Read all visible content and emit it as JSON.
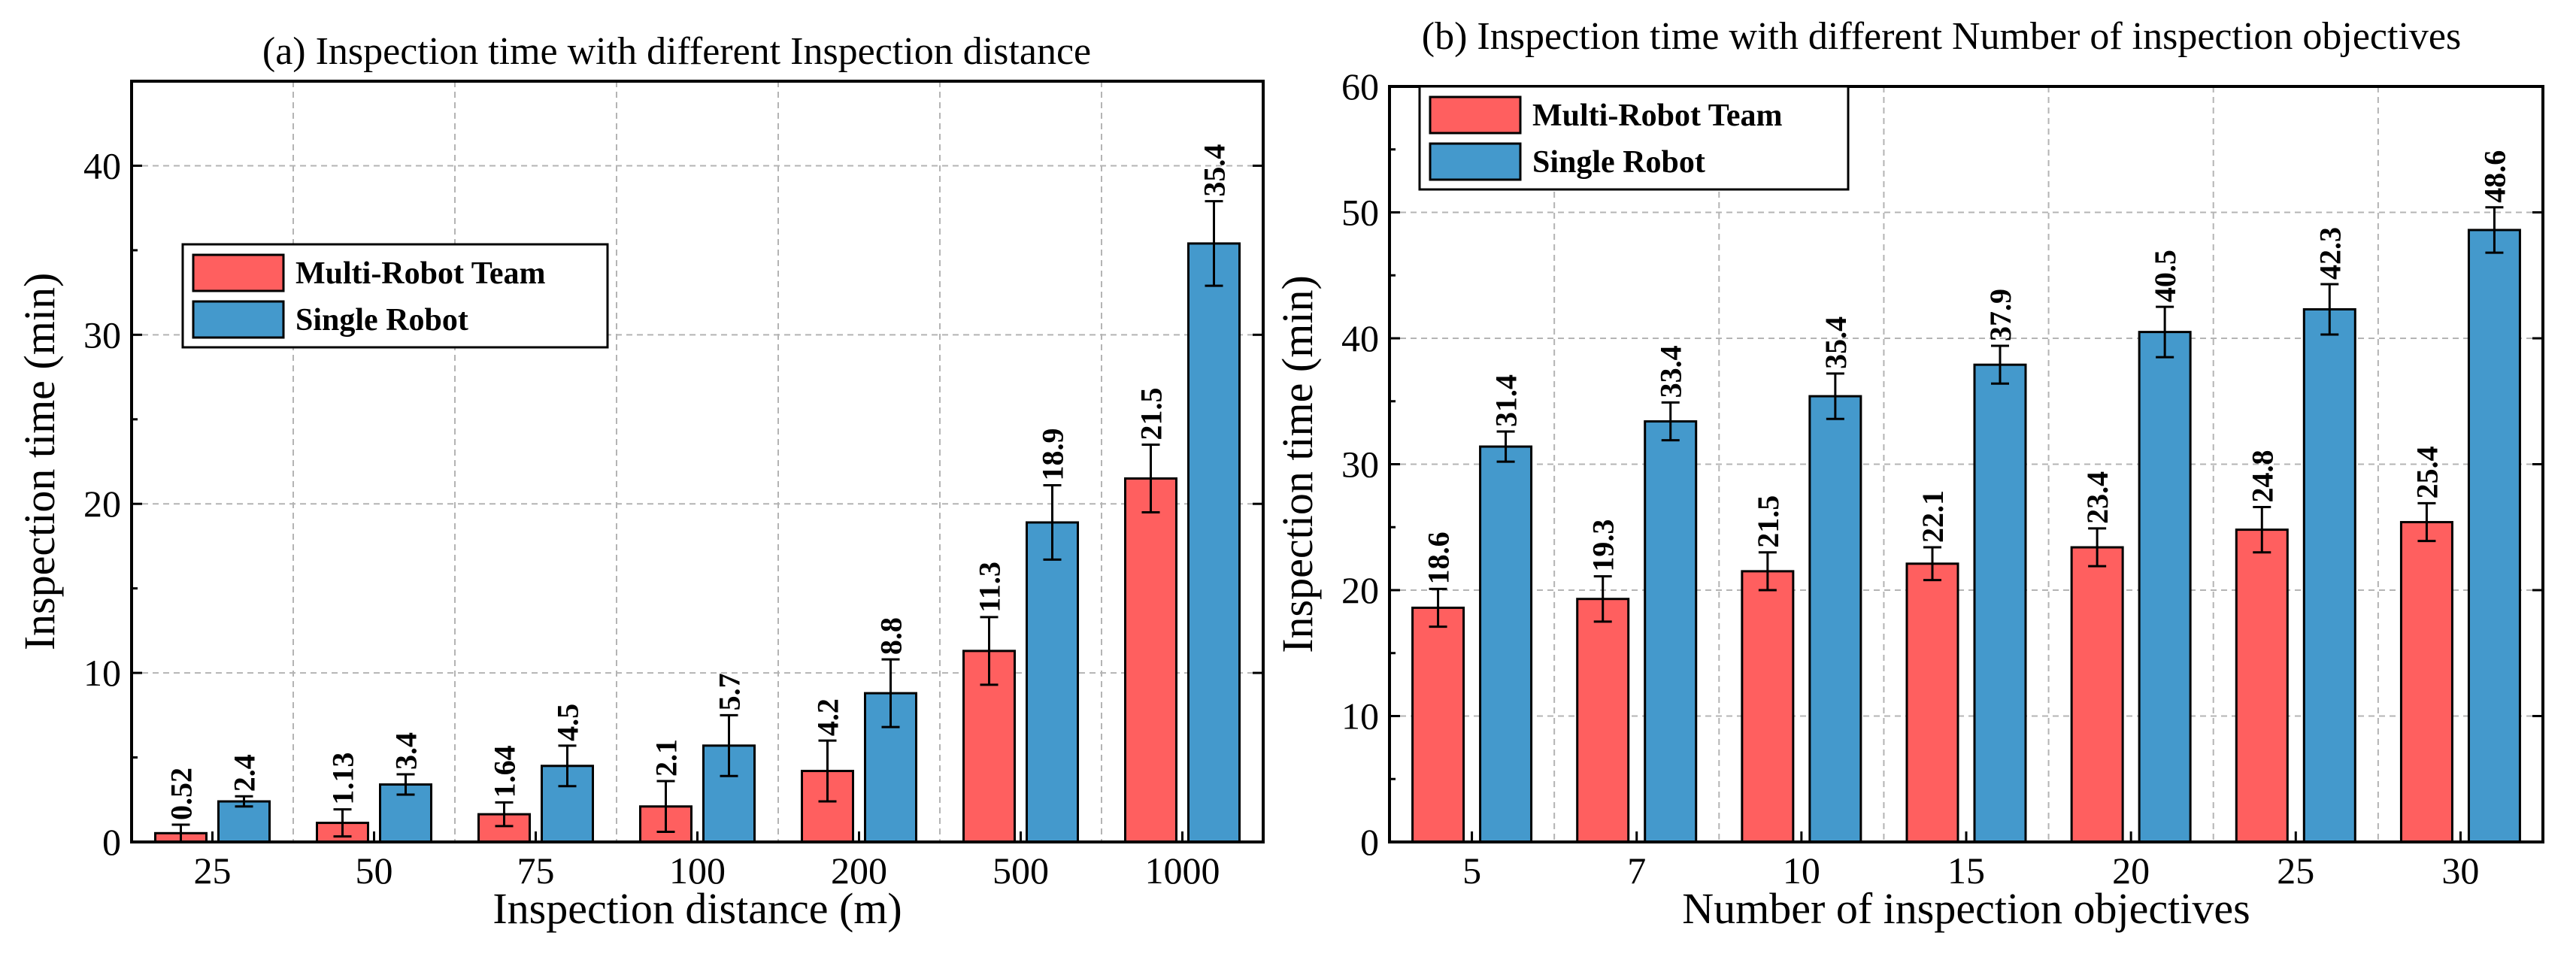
{
  "chart_data": [
    {
      "type": "bar",
      "title": "(a) Inspection time with different Inspection distance",
      "xlabel": "Inspection distance (m)",
      "ylabel": "Inspection time (min)",
      "categories": [
        "25",
        "50",
        "75",
        "100",
        "200",
        "500",
        "1000"
      ],
      "ylim": [
        0,
        45
      ],
      "yticks": [
        0,
        10,
        20,
        30,
        40
      ],
      "grid": true,
      "legend_position": "upper-left",
      "series": [
        {
          "name": "Multi-Robot Team",
          "color": "#FF5F5F",
          "values": [
            0.52,
            1.13,
            1.64,
            2.1,
            4.2,
            11.3,
            21.5
          ],
          "labels": [
            "0.52",
            "1.13",
            "1.64",
            "2.1",
            "4.2",
            "11.3",
            "21.5"
          ],
          "errors": [
            0.5,
            0.8,
            0.7,
            1.5,
            1.8,
            2.0,
            2.0
          ]
        },
        {
          "name": "Single Robot",
          "color": "#4499CC",
          "values": [
            2.4,
            3.4,
            4.5,
            5.7,
            8.8,
            18.9,
            35.4
          ],
          "labels": [
            "2.4",
            "3.4",
            "4.5",
            "5.7",
            "8.8",
            "18.9",
            "35.4"
          ],
          "errors": [
            0.3,
            0.6,
            1.2,
            1.8,
            2.0,
            2.2,
            2.5
          ]
        }
      ]
    },
    {
      "type": "bar",
      "title": "(b) Inspection time with different Number of inspection objectives",
      "xlabel": "Number of inspection objectives",
      "ylabel": "Inspection time (min)",
      "categories": [
        "5",
        "7",
        "10",
        "15",
        "20",
        "25",
        "30"
      ],
      "ylim": [
        0,
        60
      ],
      "yticks": [
        0,
        10,
        20,
        30,
        40,
        50,
        60
      ],
      "grid": true,
      "legend_position": "top-left",
      "series": [
        {
          "name": "Multi-Robot Team",
          "color": "#FF5F5F",
          "values": [
            18.6,
            19.3,
            21.5,
            22.1,
            23.4,
            24.8,
            25.4
          ],
          "labels": [
            "18.6",
            "19.3",
            "21.5",
            "22.1",
            "23.4",
            "24.8",
            "25.4"
          ],
          "errors": [
            1.5,
            1.8,
            1.5,
            1.3,
            1.5,
            1.8,
            1.5
          ]
        },
        {
          "name": "Single Robot",
          "color": "#4499CC",
          "values": [
            31.4,
            33.4,
            35.4,
            37.9,
            40.5,
            42.3,
            48.6
          ],
          "labels": [
            "31.4",
            "33.4",
            "35.4",
            "37.9",
            "40.5",
            "42.3",
            "48.6"
          ],
          "errors": [
            1.2,
            1.5,
            1.8,
            1.5,
            2.0,
            2.0,
            1.8
          ]
        }
      ]
    }
  ]
}
